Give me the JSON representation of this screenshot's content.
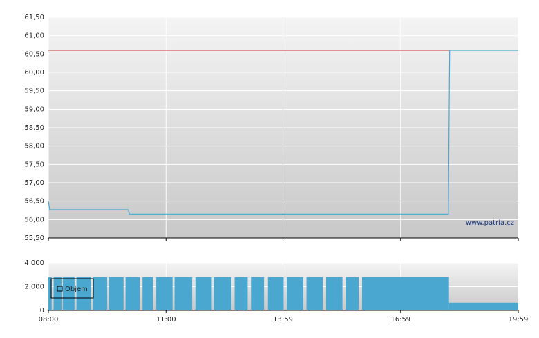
{
  "chart_data": [
    {
      "type": "line",
      "watermark": "www.patria.cz",
      "xlim": [
        "08:00",
        "19:59"
      ],
      "xticks": [
        "08:00",
        "11:00",
        "13:59",
        "16:59",
        "19:59"
      ],
      "ylim": [
        55.5,
        61.5
      ],
      "yticks": [
        {
          "value": 55.5,
          "label": "55,50"
        },
        {
          "value": 56,
          "label": "56,00"
        },
        {
          "value": 56.5,
          "label": "56,50"
        },
        {
          "value": 57,
          "label": "57,00"
        },
        {
          "value": 57.5,
          "label": "57,50"
        },
        {
          "value": 58,
          "label": "58,00"
        },
        {
          "value": 58.5,
          "label": "58,50"
        },
        {
          "value": 59,
          "label": "59,00"
        },
        {
          "value": 59.5,
          "label": "59,50"
        },
        {
          "value": 60,
          "label": "60,00"
        },
        {
          "value": 60.5,
          "label": "60,50"
        },
        {
          "value": 61,
          "label": "61,00"
        },
        {
          "value": 61.5,
          "label": "61,50"
        }
      ],
      "grid": true,
      "reference_line": {
        "value": 60.6,
        "color": "#d03a3a"
      },
      "series": [
        {
          "color": "#4aa8d0",
          "x": [
            "08:00",
            "08:02",
            "10:02",
            "10:04",
            "18:12",
            "18:14",
            "19:59"
          ],
          "values": [
            56.5,
            56.27,
            56.27,
            56.15,
            56.15,
            60.6,
            60.6
          ]
        }
      ]
    },
    {
      "type": "bar",
      "xlim": [
        "08:00",
        "19:59"
      ],
      "xticks": [
        "08:00",
        "11:00",
        "13:59",
        "16:59",
        "19:59"
      ],
      "ylim": [
        0,
        4000
      ],
      "yticks": [
        0,
        {
          "value": 2000,
          "label": "2 000"
        },
        {
          "value": 4000,
          "label": "4 000"
        }
      ],
      "grid": true,
      "legend": "lower-left",
      "series": [
        {
          "name": "Objem",
          "color": "#4aa8d0",
          "x": [
            "08:00",
            "08:05",
            "08:08",
            "08:20",
            "08:22",
            "08:40",
            "08:43",
            "09:05",
            "09:08",
            "09:30",
            "09:33",
            "09:55",
            "09:58",
            "10:20",
            "10:24",
            "10:40",
            "10:45",
            "11:10",
            "11:13",
            "11:40",
            "11:45",
            "12:10",
            "12:13",
            "12:40",
            "12:45",
            "13:05",
            "13:10",
            "13:30",
            "13:36",
            "14:00",
            "14:05",
            "14:30",
            "14:35",
            "15:00",
            "15:05",
            "15:30",
            "15:35",
            "15:55",
            "16:00",
            "18:13",
            "19:59"
          ],
          "values": [
            2800,
            null,
            2800,
            null,
            2800,
            null,
            2800,
            null,
            2800,
            null,
            2800,
            null,
            2800,
            null,
            2800,
            null,
            2800,
            null,
            2800,
            null,
            2800,
            null,
            2800,
            null,
            2800,
            null,
            2800,
            null,
            2800,
            null,
            2800,
            null,
            2800,
            null,
            2800,
            null,
            2800,
            null,
            2800,
            650,
            null
          ]
        }
      ]
    }
  ]
}
